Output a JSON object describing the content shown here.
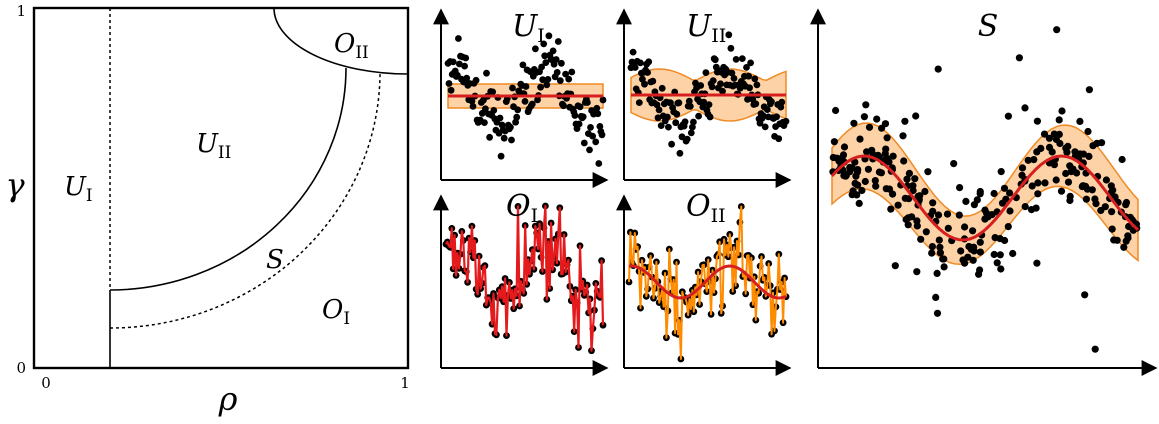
{
  "phase_diagram": {
    "x_axis_label": "ρ",
    "y_axis_label": "γ",
    "x_ticks": [
      "0",
      "1"
    ],
    "y_ticks": [
      "0",
      "1"
    ],
    "regions": {
      "u1": {
        "main": "U",
        "sub": "I"
      },
      "u2": {
        "main": "U",
        "sub": "II"
      },
      "o1": {
        "main": "O",
        "sub": "I"
      },
      "o2": {
        "main": "O",
        "sub": "II"
      },
      "s": {
        "main": "S",
        "sub": ""
      }
    }
  },
  "panels": {
    "u1": {
      "main": "U",
      "sub": "I"
    },
    "u2": {
      "main": "U",
      "sub": "II"
    },
    "o1": {
      "main": "O",
      "sub": "I"
    },
    "o2": {
      "main": "O",
      "sub": "II"
    },
    "s": {
      "main": "S",
      "sub": ""
    }
  },
  "colors": {
    "dots": "#000000",
    "trend": "#d62020",
    "band_fill": "#fdd2a6",
    "band_edge": "#f08a24",
    "o1_line": "#e41a1c",
    "o2_line": "#ff8c00"
  }
}
